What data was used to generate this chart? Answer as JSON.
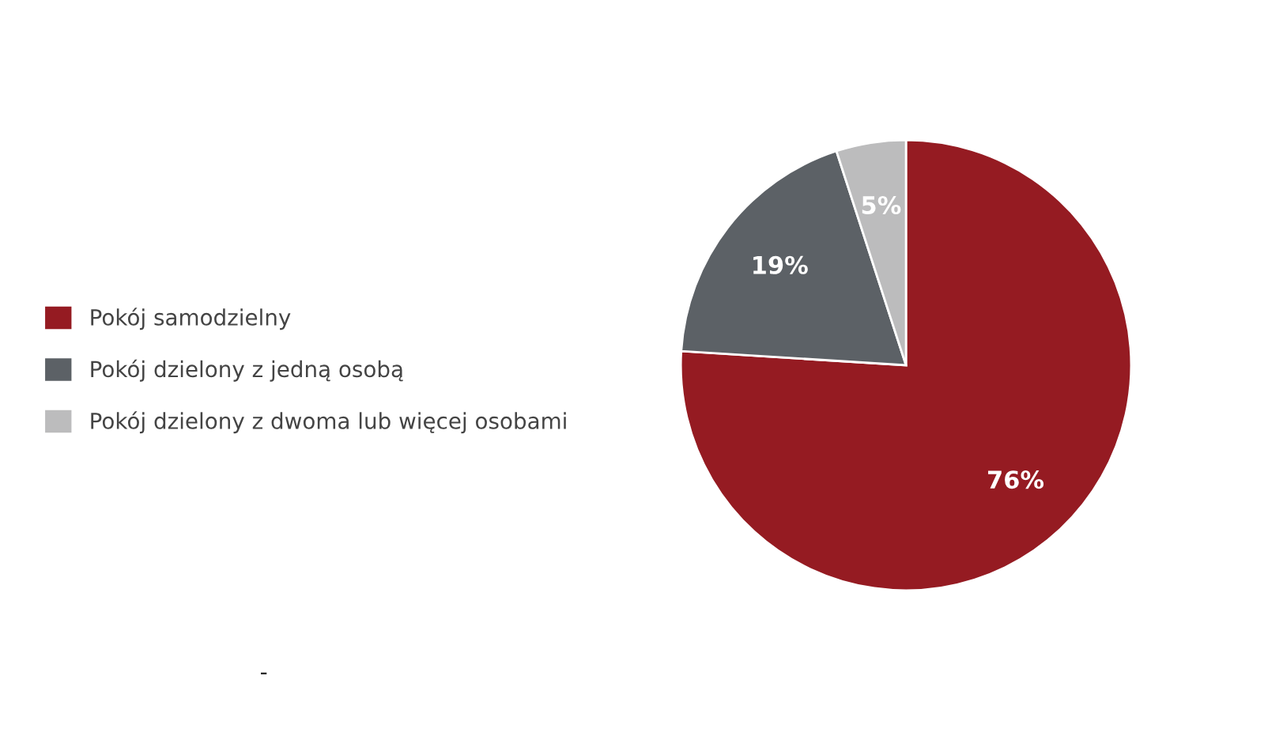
{
  "chart_data": {
    "type": "pie",
    "categories": [
      "Pokój samodzielny",
      "Pokój dzielony z jedną osobą",
      "Pokój dzielony z dwoma lub więcej osobami"
    ],
    "values": [
      76,
      19,
      5
    ],
    "colors": [
      "#951b22",
      "#5c6166",
      "#bcbcbd"
    ],
    "value_labels": [
      "76%",
      "19%",
      "5%"
    ],
    "legend": "left",
    "annotations": [
      "-"
    ]
  }
}
